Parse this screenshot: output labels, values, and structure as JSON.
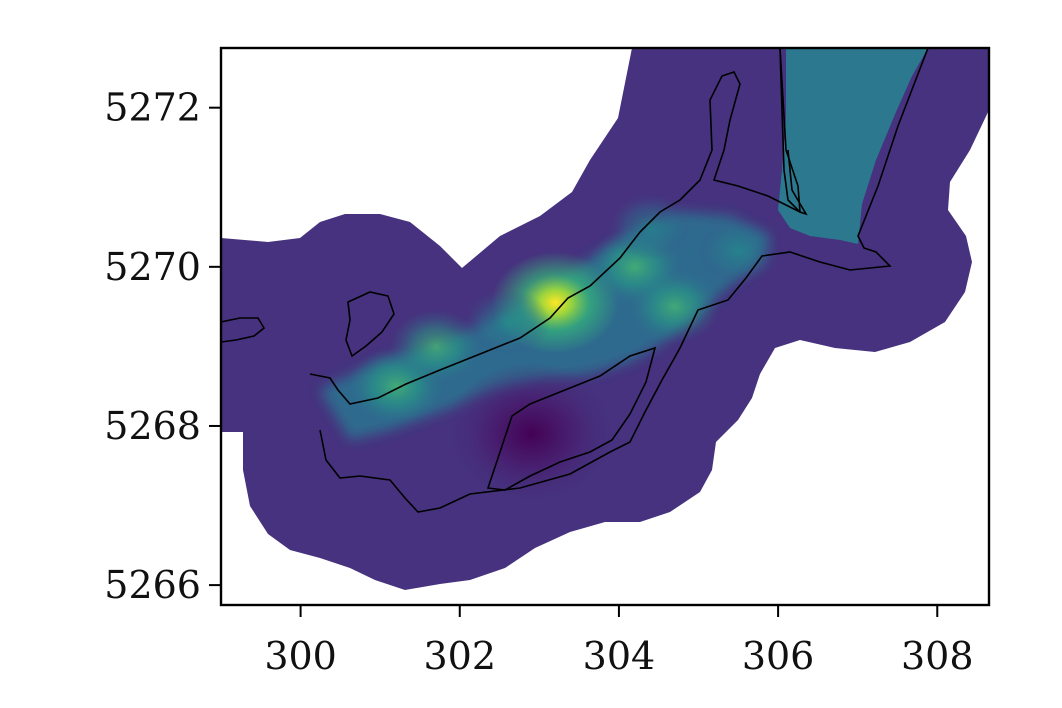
{
  "chart_data": {
    "type": "heatmap",
    "title": "",
    "xlabel": "",
    "ylabel": "",
    "xlim": [
      299.0,
      308.65
    ],
    "ylim": [
      5265.75,
      5272.75
    ],
    "x_ticks": [
      300,
      302,
      304,
      306,
      308
    ],
    "y_ticks": [
      5266,
      5268,
      5270,
      5272
    ],
    "x_tick_labels": [
      "300",
      "302",
      "304",
      "306",
      "308"
    ],
    "y_tick_labels": [
      "5266",
      "5268",
      "5270",
      "5272"
    ],
    "colormap": "viridis",
    "colorbar": false,
    "grid": false,
    "legend": "none",
    "colors": {
      "low": "#440154",
      "background_field": "#46327e",
      "mid": "#2c728e",
      "high_mid": "#35b779",
      "high": "#fde725",
      "outline": "#000000"
    },
    "hotspots": [
      {
        "x": 303.2,
        "y": 5269.55,
        "level": 1.0
      },
      {
        "x": 301.2,
        "y": 5268.5,
        "level": 0.55
      },
      {
        "x": 301.7,
        "y": 5269.0,
        "level": 0.5
      },
      {
        "x": 304.2,
        "y": 5270.0,
        "level": 0.55
      },
      {
        "x": 304.7,
        "y": 5269.5,
        "level": 0.5
      },
      {
        "x": 305.5,
        "y": 5270.2,
        "level": 0.4
      },
      {
        "x": 304.4,
        "y": 5270.5,
        "level": 0.38
      },
      {
        "x": 302.6,
        "y": 5269.3,
        "level": 0.42
      }
    ],
    "coldspot": {
      "x": 302.9,
      "y": 5267.9,
      "level": 0.0
    },
    "outer_region_level": 0.15,
    "northeast_region_level": 0.38
  }
}
